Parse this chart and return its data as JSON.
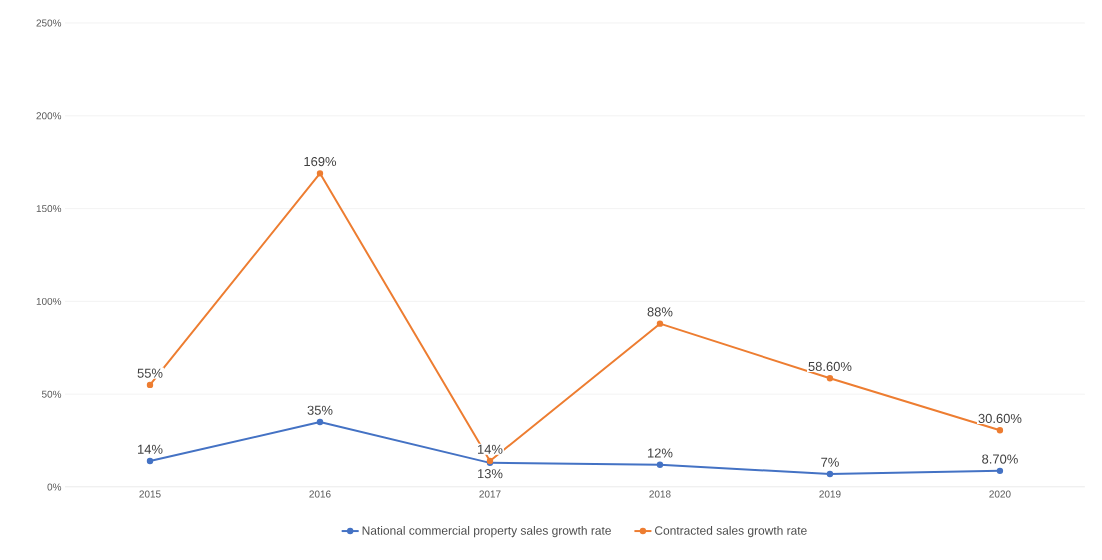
{
  "chart_data": {
    "type": "line",
    "categories": [
      "2015",
      "2016",
      "2017",
      "2018",
      "2019",
      "2020"
    ],
    "series": [
      {
        "name": "National commercial property sales growth rate",
        "color": "#4472c4",
        "values": [
          14,
          35,
          13,
          12,
          7,
          8.7
        ],
        "value_labels": [
          "14%",
          "35%",
          "13%",
          "12%",
          "7%",
          "8.70%"
        ]
      },
      {
        "name": "Contracted sales growth rate",
        "color": "#ed7d31",
        "values": [
          55,
          169,
          14,
          88,
          58.6,
          30.6
        ],
        "value_labels": [
          "55%",
          "169%",
          "14%",
          "88%",
          "58.60%",
          "30.60%"
        ]
      }
    ],
    "ylim": [
      0,
      250
    ],
    "yticks": [
      {
        "value": 0,
        "label": "0%"
      },
      {
        "value": 50,
        "label": "50%"
      },
      {
        "value": 100,
        "label": "100%"
      },
      {
        "value": 150,
        "label": "150%"
      },
      {
        "value": 200,
        "label": "200%"
      },
      {
        "value": 250,
        "label": "250%"
      }
    ],
    "grid": "y",
    "legend": "bottom",
    "marker": "circle",
    "line_style": "solid"
  }
}
